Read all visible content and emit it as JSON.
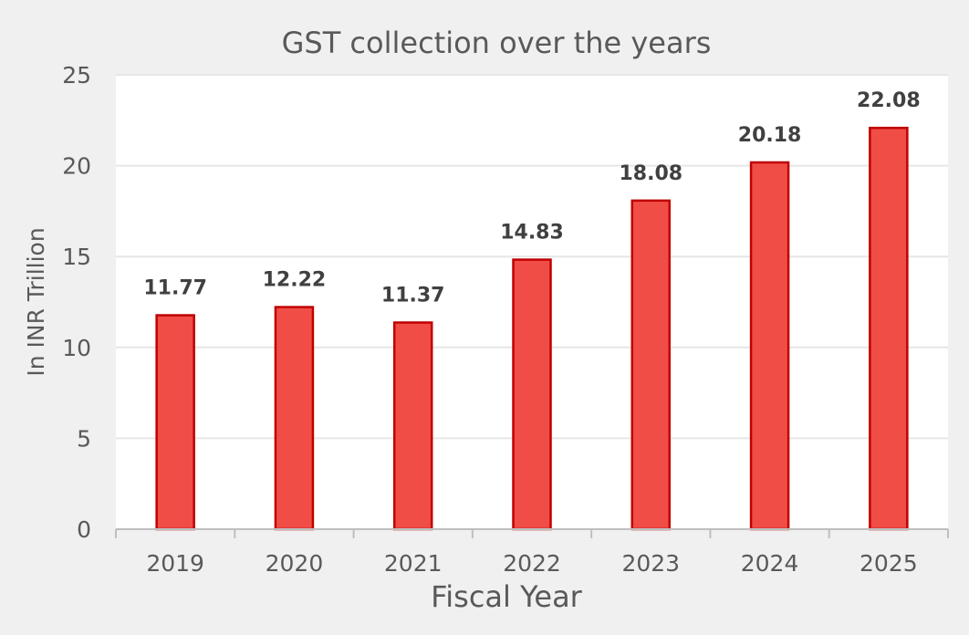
{
  "chart_data": {
    "type": "bar",
    "title": "GST collection over the years",
    "xlabel": "Fiscal Year",
    "ylabel": "In INR Trillion",
    "categories": [
      "2019",
      "2020",
      "2021",
      "2022",
      "2023",
      "2024",
      "2025"
    ],
    "values": [
      11.77,
      12.22,
      11.37,
      14.83,
      18.08,
      20.18,
      22.08
    ],
    "data_labels": [
      "11.77",
      "12.22",
      "11.37",
      "14.83",
      "18.08",
      "20.18",
      "22.08"
    ],
    "ylim": [
      0,
      25
    ],
    "yticks": [
      0,
      5,
      10,
      15,
      20,
      25
    ],
    "grid": true,
    "legend": "none",
    "colors": {
      "bar_fill": "#f04d47",
      "bar_border": "#c00000",
      "background": "#f0f0f0",
      "plot_background": "#ffffff"
    }
  }
}
